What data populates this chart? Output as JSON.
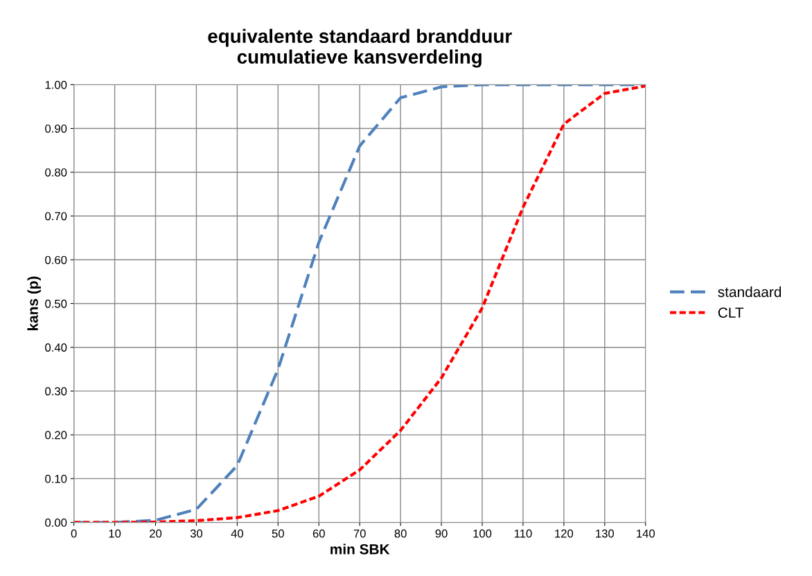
{
  "chart_data": {
    "type": "line",
    "title": "equivalente standaard brandduur\ncumulatieve kansverdeling",
    "xlabel": "min SBK",
    "ylabel": "kans (p)",
    "x": [
      0,
      10,
      20,
      30,
      40,
      50,
      60,
      70,
      80,
      90,
      100,
      110,
      120,
      130,
      140
    ],
    "series": [
      {
        "name": "standaard",
        "color": "#4f81bd",
        "line_style": "dashed",
        "values": [
          0,
          0,
          0.005,
          0.03,
          0.13,
          0.35,
          0.64,
          0.86,
          0.97,
          0.995,
          1.0,
          1.0,
          1.0,
          1.0,
          1.0
        ]
      },
      {
        "name": "CLT",
        "color": "#ff0000",
        "line_style": "dotted",
        "values": [
          0,
          0,
          0.001,
          0.004,
          0.011,
          0.027,
          0.06,
          0.12,
          0.21,
          0.33,
          0.49,
          0.72,
          0.91,
          0.98,
          0.997
        ]
      }
    ],
    "xlim": [
      0,
      140
    ],
    "xticks": [
      0,
      10,
      20,
      30,
      40,
      50,
      60,
      70,
      80,
      90,
      100,
      110,
      120,
      130,
      140
    ],
    "ylim": [
      0,
      1
    ],
    "yticks": [
      {
        "value": 0,
        "label": "0.00"
      },
      {
        "value": 0.1,
        "label": "0.10"
      },
      {
        "value": 0.2,
        "label": "0.20"
      },
      {
        "value": 0.3,
        "label": "0.30"
      },
      {
        "value": 0.4,
        "label": "0.40"
      },
      {
        "value": 0.5,
        "label": "0.50"
      },
      {
        "value": 0.6,
        "label": "0.60"
      },
      {
        "value": 0.7,
        "label": "0.70"
      },
      {
        "value": 0.8,
        "label": "0.80"
      },
      {
        "value": 0.9,
        "label": "0.90"
      },
      {
        "value": 1,
        "label": "1.00"
      }
    ],
    "grid": true,
    "legend": "right",
    "marker": "none"
  }
}
